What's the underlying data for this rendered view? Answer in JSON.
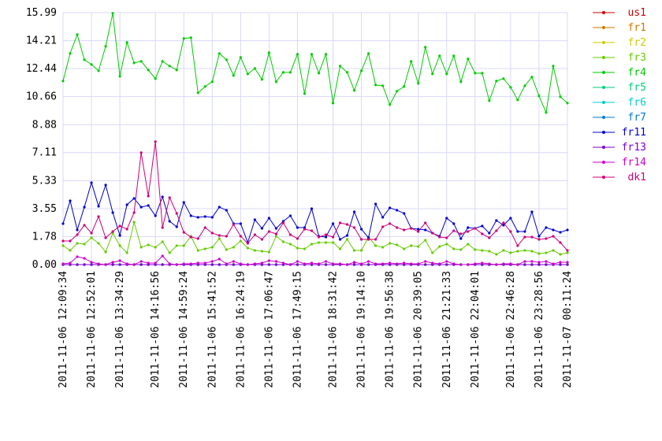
{
  "chart_data": {
    "type": "line",
    "categories": [
      "2011-11-06 12:09:34",
      null,
      null,
      null,
      "2011-11-06 12:52:01",
      null,
      null,
      null,
      "2011-11-06 13:34:29",
      null,
      null,
      null,
      null,
      "2011-11-06 14:16:56",
      null,
      null,
      null,
      "2011-11-06 14:59:24",
      null,
      null,
      null,
      "2011-11-06 15:41:52",
      null,
      null,
      null,
      "2011-11-06 16:24:19",
      null,
      null,
      null,
      "2011-11-06 17:06:47",
      null,
      null,
      null,
      "2011-11-06 17:49:15",
      null,
      null,
      null,
      null,
      "2011-11-06 18:31:42",
      null,
      null,
      null,
      "2011-11-06 19:14:10",
      null,
      null,
      null,
      "2011-11-06 19:56:38",
      null,
      null,
      null,
      "2011-11-06 20:39:05",
      null,
      null,
      null,
      "2011-11-06 21:21:33",
      null,
      null,
      null,
      "2011-11-06 22:04:01",
      null,
      null,
      null,
      null,
      "2011-11-06 22:46:28",
      null,
      null,
      null,
      "2011-11-06 23:28:56",
      null,
      null,
      null,
      "2011-11-07 00:11:24"
    ],
    "ylim": [
      0,
      15.99
    ],
    "yticks": [
      {
        "value": 0,
        "label": "0.00"
      },
      1.78,
      3.55,
      5.33,
      7.11,
      8.88,
      10.66,
      12.44,
      14.21,
      15.99
    ],
    "grid": true,
    "legend": "right",
    "series": [
      {
        "name": "us1",
        "color": "#cc0000",
        "values": [
          0,
          0,
          0,
          0,
          0,
          0,
          0,
          0,
          0,
          0,
          0,
          0,
          0,
          0,
          0,
          0,
          0,
          0,
          0,
          0,
          0,
          0,
          0,
          0,
          0,
          0,
          0,
          0,
          0,
          0,
          0,
          0,
          0,
          0,
          0,
          0,
          0,
          0,
          0,
          0,
          0,
          0,
          0,
          0,
          0,
          0,
          0,
          0,
          0,
          0,
          0,
          0,
          0,
          0,
          0,
          0,
          0,
          0,
          0,
          0,
          0,
          0,
          0,
          0,
          0,
          0,
          0,
          0,
          0,
          0,
          0,
          0
        ]
      },
      {
        "name": "fr1",
        "color": "#cc7a00",
        "values": [
          0,
          0,
          0,
          0,
          0,
          0,
          0,
          0,
          0,
          0,
          0,
          0,
          0,
          0,
          0,
          0,
          0,
          0,
          0,
          0,
          0,
          0,
          0,
          0,
          0,
          0,
          0,
          0,
          0,
          0,
          0,
          0,
          0,
          0,
          0,
          0,
          0,
          0,
          0,
          0,
          0,
          0,
          0,
          0,
          0,
          0,
          0,
          0,
          0,
          0,
          0,
          0,
          0,
          0,
          0,
          0,
          0,
          0,
          0,
          0,
          0,
          0,
          0,
          0,
          0,
          0,
          0,
          0,
          0,
          0,
          0,
          0
        ]
      },
      {
        "name": "fr2",
        "color": "#cccc00",
        "values": [
          0,
          0,
          0,
          0,
          0,
          0,
          0,
          0,
          0,
          0,
          0,
          0,
          0,
          0,
          0,
          0,
          0,
          0,
          0,
          0,
          0,
          0,
          0,
          0,
          0,
          0,
          0,
          0,
          0,
          0,
          0,
          0,
          0,
          0,
          0,
          0,
          0,
          0,
          0,
          0,
          0,
          0,
          0,
          0,
          0,
          0,
          0,
          0,
          0,
          0,
          0,
          0,
          0,
          0,
          0,
          0,
          0,
          0,
          0,
          0,
          0,
          0,
          0,
          0,
          0,
          0,
          0,
          0,
          0,
          0,
          0,
          0
        ]
      },
      {
        "name": "fr3",
        "color": "#66cc00",
        "values": [
          1.2,
          0.9,
          1.35,
          1.3,
          1.7,
          1.35,
          0.8,
          2.0,
          1.2,
          0.75,
          2.7,
          1.1,
          1.25,
          1.1,
          1.45,
          0.75,
          1.2,
          1.2,
          1.8,
          0.9,
          1.0,
          1.1,
          1.65,
          0.95,
          1.1,
          1.5,
          1.05,
          0.9,
          0.85,
          0.8,
          1.8,
          1.45,
          1.3,
          1.05,
          1.0,
          1.3,
          1.4,
          1.4,
          1.4,
          1.0,
          1.6,
          0.9,
          0.9,
          1.75,
          1.2,
          1.1,
          1.35,
          1.25,
          1.0,
          1.2,
          1.15,
          1.55,
          0.75,
          1.15,
          1.3,
          1.0,
          0.95,
          1.3,
          0.95,
          0.9,
          0.85,
          0.65,
          0.9,
          0.75,
          0.85,
          0.9,
          0.85,
          0.7,
          0.75,
          0.9,
          0.65,
          0.75
        ]
      },
      {
        "name": "fr4",
        "color": "#00cc00",
        "values": [
          11.65,
          13.4,
          14.6,
          13.0,
          12.7,
          12.3,
          13.85,
          15.95,
          11.95,
          14.1,
          12.8,
          12.9,
          12.35,
          11.8,
          12.9,
          12.6,
          12.35,
          14.35,
          14.4,
          10.9,
          11.3,
          11.6,
          13.4,
          13.0,
          12.0,
          13.15,
          12.1,
          12.45,
          11.75,
          13.45,
          11.6,
          12.2,
          12.2,
          13.35,
          10.85,
          13.35,
          12.15,
          13.35,
          10.25,
          12.6,
          12.2,
          11.05,
          12.3,
          13.4,
          11.4,
          11.35,
          10.15,
          11.0,
          11.3,
          12.9,
          11.5,
          13.8,
          12.1,
          13.25,
          12.1,
          13.25,
          11.6,
          13.05,
          12.15,
          12.15,
          10.4,
          11.65,
          11.8,
          11.25,
          10.45,
          11.35,
          11.9,
          10.7,
          9.65,
          12.6,
          10.65,
          10.25
        ]
      },
      {
        "name": "fr5",
        "color": "#00cc7a",
        "values": [
          0,
          0,
          0,
          0,
          0,
          0,
          0,
          0,
          0,
          0,
          0,
          0,
          0,
          0,
          0,
          0,
          0,
          0,
          0,
          0,
          0,
          0,
          0,
          0,
          0,
          0,
          0,
          0,
          0,
          0,
          0,
          0,
          0,
          0,
          0,
          0,
          0,
          0,
          0,
          0,
          0,
          0,
          0,
          0,
          0,
          0,
          0,
          0,
          0,
          0,
          0,
          0,
          0,
          0,
          0,
          0,
          0,
          0,
          0,
          0,
          0,
          0,
          0,
          0,
          0,
          0,
          0,
          0,
          0,
          0,
          0,
          0
        ]
      },
      {
        "name": "fr6",
        "color": "#00cccc",
        "values": [
          0,
          0,
          0,
          0,
          0,
          0,
          0,
          0,
          0,
          0,
          0,
          0,
          0,
          0,
          0,
          0,
          0,
          0,
          0,
          0,
          0,
          0,
          0,
          0,
          0,
          0,
          0,
          0,
          0,
          0,
          0,
          0,
          0,
          0,
          0,
          0,
          0,
          0,
          0,
          0,
          0,
          0,
          0,
          0,
          0,
          0,
          0,
          0,
          0,
          0,
          0,
          0,
          0,
          0,
          0,
          0,
          0,
          0,
          0,
          0,
          0,
          0,
          0,
          0,
          0,
          0,
          0,
          0,
          0,
          0,
          0,
          0
        ]
      },
      {
        "name": "fr7",
        "color": "#007acc",
        "values": [
          0,
          0,
          0,
          0,
          0,
          0,
          0,
          0,
          0,
          0,
          0,
          0,
          0,
          0,
          0,
          0,
          0,
          0,
          0,
          0,
          0,
          0,
          0,
          0,
          0,
          0,
          0,
          0,
          0,
          0,
          0,
          0,
          0,
          0,
          0,
          0,
          0,
          0,
          0,
          0,
          0,
          0,
          0,
          0,
          0,
          0,
          0,
          0,
          0,
          0,
          0,
          0,
          0,
          0,
          0,
          0,
          0,
          0,
          0,
          0,
          0,
          0,
          0,
          0,
          0,
          0,
          0,
          0,
          0,
          0,
          0,
          0
        ]
      },
      {
        "name": "fr11",
        "color": "#0000cc",
        "values": [
          2.6,
          4.05,
          2.2,
          3.65,
          5.2,
          3.7,
          5.05,
          3.3,
          1.85,
          3.8,
          4.2,
          3.65,
          3.75,
          3.1,
          4.3,
          2.75,
          2.4,
          3.95,
          3.1,
          3.0,
          3.05,
          3.0,
          3.65,
          3.45,
          2.6,
          2.6,
          1.4,
          2.85,
          2.3,
          2.95,
          2.3,
          2.75,
          3.1,
          2.35,
          2.35,
          3.55,
          1.8,
          1.75,
          2.6,
          1.6,
          1.85,
          3.35,
          2.25,
          1.7,
          3.85,
          3.0,
          3.6,
          3.45,
          3.25,
          2.3,
          2.25,
          2.2,
          2.0,
          1.8,
          2.95,
          2.6,
          1.65,
          2.35,
          2.3,
          2.45,
          2.0,
          2.8,
          2.5,
          2.95,
          2.1,
          2.1,
          3.35,
          1.8,
          2.35,
          2.2,
          2.05,
          2.2
        ]
      },
      {
        "name": "fr13",
        "color": "#7a00cc",
        "values": [
          0,
          0,
          0,
          0,
          0,
          0,
          0,
          0,
          0,
          0,
          0,
          0,
          0,
          0,
          0,
          0,
          0,
          0,
          0,
          0,
          0,
          0,
          0,
          0,
          0,
          0,
          0,
          0,
          0,
          0,
          0,
          0,
          0,
          0,
          0,
          0,
          0,
          0,
          0,
          0,
          0,
          0,
          0,
          0,
          0,
          0,
          0,
          0,
          0,
          0,
          0,
          0,
          0,
          0,
          0,
          0,
          0,
          0,
          0,
          0,
          0,
          0,
          0,
          0,
          0,
          0,
          0,
          0,
          0,
          0,
          0,
          0
        ]
      },
      {
        "name": "fr14",
        "color": "#cc00cc",
        "values": [
          0.05,
          0.1,
          0.5,
          0.4,
          0.15,
          0.05,
          0,
          0.15,
          0.25,
          0.05,
          0,
          0.2,
          0.1,
          0.1,
          0.55,
          0.05,
          0,
          0.05,
          0.05,
          0.1,
          0.1,
          0.2,
          0.35,
          0.05,
          0.2,
          0.05,
          0,
          0.05,
          0.1,
          0.25,
          0.2,
          0.1,
          0,
          0.2,
          0.05,
          0.1,
          0.05,
          0.2,
          0.05,
          0.05,
          0,
          0.15,
          0.05,
          0.2,
          0.05,
          0.05,
          0.1,
          0.05,
          0.1,
          0.05,
          0.05,
          0.2,
          0.1,
          0.05,
          0.2,
          0.05,
          0,
          0,
          0.05,
          0.1,
          0.05,
          0,
          0.05,
          0.05,
          0,
          0.2,
          0.2,
          0.15,
          0.2,
          0.05,
          0.15,
          0.15
        ]
      },
      {
        "name": "dk1",
        "color": "#cc007a",
        "values": [
          1.5,
          1.5,
          1.9,
          2.5,
          2.0,
          3.05,
          1.7,
          2.1,
          2.45,
          2.25,
          3.3,
          7.1,
          4.35,
          7.8,
          2.35,
          4.25,
          3.25,
          2.05,
          1.75,
          1.65,
          2.35,
          2.0,
          1.85,
          1.8,
          2.55,
          1.8,
          1.35,
          1.9,
          1.6,
          2.1,
          1.95,
          2.65,
          1.9,
          1.65,
          2.25,
          2.15,
          1.75,
          1.9,
          1.75,
          2.65,
          2.55,
          2.35,
          1.6,
          1.6,
          1.6,
          2.4,
          2.6,
          2.35,
          2.2,
          2.3,
          2.1,
          2.65,
          2.0,
          1.75,
          1.7,
          2.15,
          1.95,
          2.1,
          2.3,
          1.95,
          1.7,
          2.15,
          2.65,
          2.1,
          1.2,
          1.75,
          1.75,
          1.6,
          1.65,
          1.8,
          1.4,
          0.9
        ]
      }
    ]
  }
}
